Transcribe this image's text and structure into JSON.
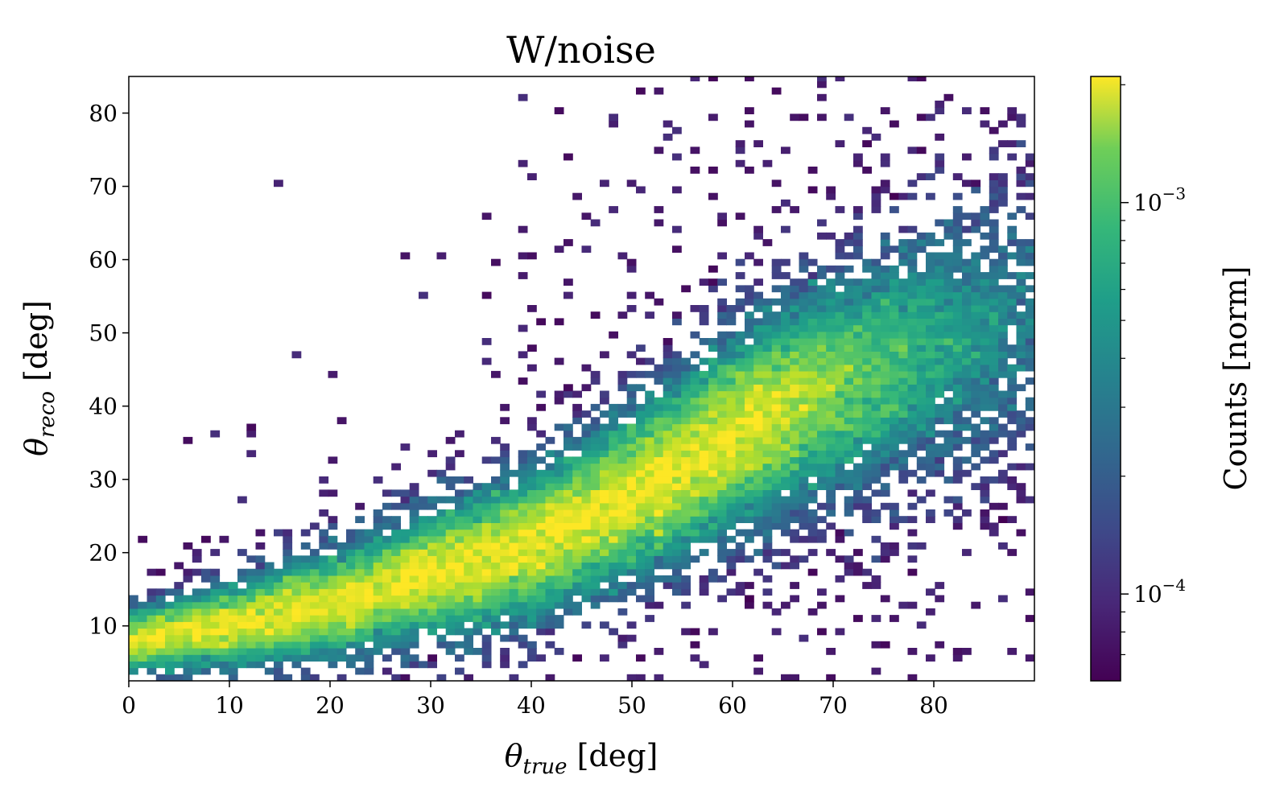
{
  "chart_data": {
    "type": "heatmap",
    "title": "W/noise",
    "xlabel": {
      "symbol": "θ",
      "subscript": "true",
      "unit": " [deg]"
    },
    "ylabel": {
      "symbol": "θ",
      "subscript": "reco",
      "unit": " [deg]"
    },
    "xlim": [
      0,
      90
    ],
    "ylim": [
      2.5,
      85
    ],
    "x_ticks": [
      0,
      10,
      20,
      30,
      40,
      50,
      60,
      70,
      80
    ],
    "x_tick_labels": [
      "0",
      "10",
      "20",
      "30",
      "40",
      "50",
      "60",
      "70",
      "80"
    ],
    "y_ticks": [
      10,
      20,
      30,
      40,
      50,
      60,
      70,
      80
    ],
    "y_tick_labels": [
      "10",
      "20",
      "30",
      "40",
      "50",
      "60",
      "70",
      "80"
    ],
    "colorbar": {
      "label": "Counts [norm]",
      "scale": "log",
      "colormap": "viridis",
      "range": [
        6e-05,
        0.0021
      ],
      "ticks": [
        {
          "value": 0.0001,
          "base": "10",
          "exp": "−4"
        },
        {
          "value": 0.001,
          "base": "10",
          "exp": "−3"
        }
      ],
      "minor_ticks": [
        7e-05,
        8e-05,
        9e-05,
        0.0002,
        0.0003,
        0.0004,
        0.0005,
        0.0006,
        0.0007,
        0.0008,
        0.0009,
        0.002
      ]
    },
    "bin_width_x": 0.9,
    "bin_height_y": 0.9,
    "ridge": {
      "description": "density ridge: theta_reco ~ 6 + 0.55*theta_true, broadening with theta_true",
      "points": [
        [
          0,
          8
        ],
        [
          10,
          10
        ],
        [
          20,
          13
        ],
        [
          30,
          17
        ],
        [
          40,
          21
        ],
        [
          50,
          28
        ],
        [
          55,
          32
        ],
        [
          60,
          36
        ],
        [
          65,
          40
        ],
        [
          70,
          43
        ],
        [
          80,
          48
        ],
        [
          90,
          52
        ]
      ],
      "peak_density": 0.002,
      "min_density": 6e-05
    },
    "grid": false
  }
}
